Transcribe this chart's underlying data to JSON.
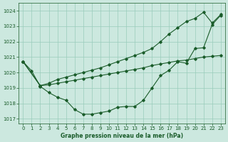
{
  "background_color": "#cce8df",
  "grid_color": "#99ccbb",
  "line_color": "#1a5c2a",
  "title": "Graphe pression niveau de la mer (hPa)",
  "ylim": [
    1016.7,
    1024.5
  ],
  "xlim": [
    -0.5,
    23.5
  ],
  "yticks": [
    1017,
    1018,
    1019,
    1020,
    1021,
    1022,
    1023,
    1024
  ],
  "xticks": [
    0,
    1,
    2,
    3,
    4,
    5,
    6,
    7,
    8,
    9,
    10,
    11,
    12,
    13,
    14,
    15,
    16,
    17,
    18,
    19,
    20,
    21,
    22,
    23
  ],
  "line1_x": [
    0,
    1,
    2,
    3,
    4,
    5,
    6,
    7,
    8,
    9,
    10,
    11,
    12,
    13,
    14,
    15,
    16,
    17,
    18,
    19,
    20,
    21,
    22,
    23
  ],
  "line1_y": [
    1020.7,
    1020.1,
    1019.1,
    1018.7,
    1018.4,
    1018.2,
    1017.6,
    1017.3,
    1017.3,
    1017.4,
    1017.5,
    1017.75,
    1017.8,
    1017.8,
    1018.2,
    1019.0,
    1019.8,
    1020.15,
    1020.7,
    1020.6,
    1021.55,
    1021.6,
    1023.1,
    1023.7
  ],
  "line2_x": [
    0,
    2,
    3,
    4,
    5,
    6,
    7,
    8,
    9,
    10,
    11,
    12,
    13,
    14,
    15,
    16,
    17,
    18,
    19,
    20,
    21,
    22,
    23
  ],
  "line2_y": [
    1020.7,
    1019.15,
    1019.2,
    1019.3,
    1019.4,
    1019.5,
    1019.6,
    1019.7,
    1019.8,
    1019.9,
    1020.0,
    1020.1,
    1020.2,
    1020.3,
    1020.45,
    1020.55,
    1020.65,
    1020.75,
    1020.8,
    1020.9,
    1021.0,
    1021.05,
    1021.1
  ],
  "line3_x": [
    0,
    2,
    3,
    4,
    5,
    6,
    7,
    8,
    9,
    10,
    11,
    12,
    13,
    14,
    15,
    16,
    17,
    18,
    19,
    20,
    21,
    22,
    23
  ],
  "line3_y": [
    1020.7,
    1019.15,
    1019.3,
    1019.55,
    1019.7,
    1019.85,
    1020.0,
    1020.15,
    1020.3,
    1020.5,
    1020.7,
    1020.9,
    1021.1,
    1021.3,
    1021.55,
    1022.0,
    1022.5,
    1022.9,
    1023.3,
    1023.5,
    1023.9,
    1023.2,
    1023.75
  ]
}
